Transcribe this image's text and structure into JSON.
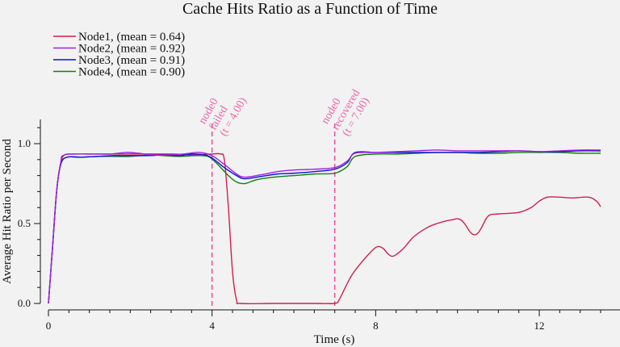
{
  "chart_data": {
    "type": "line",
    "title": "Cache Hits Ratio as a Function of Time",
    "xlabel": "Time (s)",
    "ylabel": "Average Hit Ratio per Second",
    "xlim": [
      0,
      13.5
    ],
    "ylim": [
      -0.02,
      1.15
    ],
    "x_ticks": [
      0,
      4,
      8,
      12
    ],
    "x_tick_labels": [
      "0",
      "4",
      "8",
      "12"
    ],
    "x_minor_ticks": [
      0.5,
      1,
      1.5,
      2,
      2.5,
      3,
      3.5,
      4.5,
      5,
      5.5,
      6,
      6.5,
      7,
      7.5,
      8.5,
      9,
      9.5,
      10,
      10.5,
      11,
      11.5,
      12.5,
      13,
      13.5
    ],
    "y_ticks": [
      0,
      0.5,
      1.0
    ],
    "y_tick_labels": [
      "0.0",
      "0.5",
      "1.0"
    ],
    "legend_position": "top-left",
    "series": [
      {
        "name": "Node1, (mean = 0.64)",
        "color": "#d0204e",
        "points": [
          [
            0,
            0
          ],
          [
            0.1,
            0.35
          ],
          [
            0.2,
            0.7
          ],
          [
            0.3,
            0.88
          ],
          [
            0.4,
            0.93
          ],
          [
            0.6,
            0.935
          ],
          [
            1,
            0.935
          ],
          [
            1.5,
            0.935
          ],
          [
            2,
            0.935
          ],
          [
            2.5,
            0.935
          ],
          [
            3,
            0.935
          ],
          [
            3.5,
            0.93
          ],
          [
            4,
            0.935
          ],
          [
            4.2,
            0.935
          ],
          [
            4.3,
            0.9
          ],
          [
            4.4,
            0.6
          ],
          [
            4.5,
            0.2
          ],
          [
            4.6,
            0.02
          ],
          [
            4.7,
            0
          ],
          [
            5.5,
            0
          ],
          [
            6.5,
            0
          ],
          [
            7,
            0
          ],
          [
            7.1,
            0.02
          ],
          [
            7.2,
            0.07
          ],
          [
            7.4,
            0.17
          ],
          [
            7.6,
            0.24
          ],
          [
            7.8,
            0.3
          ],
          [
            8,
            0.35
          ],
          [
            8.1,
            0.355
          ],
          [
            8.2,
            0.34
          ],
          [
            8.3,
            0.31
          ],
          [
            8.4,
            0.295
          ],
          [
            8.5,
            0.305
          ],
          [
            8.7,
            0.35
          ],
          [
            8.9,
            0.41
          ],
          [
            9.1,
            0.45
          ],
          [
            9.3,
            0.48
          ],
          [
            9.5,
            0.5
          ],
          [
            9.7,
            0.515
          ],
          [
            9.9,
            0.525
          ],
          [
            10,
            0.53
          ],
          [
            10.1,
            0.52
          ],
          [
            10.2,
            0.49
          ],
          [
            10.3,
            0.45
          ],
          [
            10.4,
            0.43
          ],
          [
            10.5,
            0.44
          ],
          [
            10.6,
            0.48
          ],
          [
            10.7,
            0.53
          ],
          [
            10.8,
            0.555
          ],
          [
            11,
            0.56
          ],
          [
            11.5,
            0.57
          ],
          [
            11.8,
            0.6
          ],
          [
            12,
            0.64
          ],
          [
            12.2,
            0.665
          ],
          [
            12.5,
            0.665
          ],
          [
            12.8,
            0.66
          ],
          [
            13.2,
            0.665
          ],
          [
            13.4,
            0.64
          ],
          [
            13.5,
            0.605
          ]
        ]
      },
      {
        "name": "Node2, (mean = 0.92)",
        "color": "#a020e0",
        "points": [
          [
            0,
            0
          ],
          [
            0.1,
            0.35
          ],
          [
            0.2,
            0.7
          ],
          [
            0.3,
            0.88
          ],
          [
            0.4,
            0.93
          ],
          [
            1,
            0.935
          ],
          [
            1.5,
            0.935
          ],
          [
            1.9,
            0.945
          ],
          [
            2.2,
            0.94
          ],
          [
            2.5,
            0.93
          ],
          [
            3,
            0.93
          ],
          [
            3.3,
            0.935
          ],
          [
            3.7,
            0.945
          ],
          [
            4,
            0.925
          ],
          [
            4.3,
            0.87
          ],
          [
            4.6,
            0.81
          ],
          [
            4.8,
            0.79
          ],
          [
            5.2,
            0.805
          ],
          [
            5.6,
            0.825
          ],
          [
            6,
            0.835
          ],
          [
            6.5,
            0.84
          ],
          [
            7,
            0.85
          ],
          [
            7.3,
            0.89
          ],
          [
            7.5,
            0.94
          ],
          [
            8,
            0.945
          ],
          [
            8.5,
            0.95
          ],
          [
            9,
            0.955
          ],
          [
            9.5,
            0.96
          ],
          [
            10,
            0.955
          ],
          [
            10.5,
            0.955
          ],
          [
            11,
            0.955
          ],
          [
            11.5,
            0.955
          ],
          [
            12,
            0.95
          ],
          [
            12.5,
            0.955
          ],
          [
            13,
            0.96
          ],
          [
            13.5,
            0.96
          ]
        ]
      },
      {
        "name": "Node3, (mean = 0.91)",
        "color": "#1010d8",
        "points": [
          [
            0,
            0
          ],
          [
            0.1,
            0.35
          ],
          [
            0.2,
            0.7
          ],
          [
            0.3,
            0.87
          ],
          [
            0.45,
            0.915
          ],
          [
            0.8,
            0.915
          ],
          [
            1.2,
            0.92
          ],
          [
            1.6,
            0.925
          ],
          [
            2,
            0.925
          ],
          [
            2.5,
            0.925
          ],
          [
            2.8,
            0.93
          ],
          [
            3.2,
            0.925
          ],
          [
            3.5,
            0.935
          ],
          [
            3.8,
            0.93
          ],
          [
            4,
            0.91
          ],
          [
            4.3,
            0.85
          ],
          [
            4.6,
            0.8
          ],
          [
            4.8,
            0.78
          ],
          [
            5.2,
            0.795
          ],
          [
            5.6,
            0.81
          ],
          [
            6,
            0.815
          ],
          [
            6.5,
            0.825
          ],
          [
            7,
            0.84
          ],
          [
            7.3,
            0.88
          ],
          [
            7.5,
            0.945
          ],
          [
            8,
            0.945
          ],
          [
            8.5,
            0.945
          ],
          [
            9,
            0.945
          ],
          [
            9.5,
            0.945
          ],
          [
            10,
            0.945
          ],
          [
            10.5,
            0.945
          ],
          [
            11,
            0.95
          ],
          [
            11.5,
            0.955
          ],
          [
            12,
            0.95
          ],
          [
            12.5,
            0.95
          ],
          [
            13,
            0.955
          ],
          [
            13.5,
            0.955
          ]
        ]
      },
      {
        "name": "Node4, (mean = 0.90)",
        "color": "#108010",
        "points": [
          [
            0,
            0
          ],
          [
            0.1,
            0.35
          ],
          [
            0.2,
            0.7
          ],
          [
            0.3,
            0.87
          ],
          [
            0.45,
            0.915
          ],
          [
            0.8,
            0.915
          ],
          [
            1.2,
            0.92
          ],
          [
            1.6,
            0.92
          ],
          [
            2,
            0.92
          ],
          [
            2.5,
            0.93
          ],
          [
            2.8,
            0.925
          ],
          [
            3.2,
            0.92
          ],
          [
            3.6,
            0.925
          ],
          [
            3.9,
            0.92
          ],
          [
            4.1,
            0.88
          ],
          [
            4.4,
            0.8
          ],
          [
            4.6,
            0.76
          ],
          [
            4.8,
            0.75
          ],
          [
            5.1,
            0.775
          ],
          [
            5.5,
            0.79
          ],
          [
            6,
            0.8
          ],
          [
            6.5,
            0.81
          ],
          [
            7,
            0.815
          ],
          [
            7.3,
            0.855
          ],
          [
            7.5,
            0.92
          ],
          [
            8,
            0.935
          ],
          [
            8.5,
            0.935
          ],
          [
            9,
            0.94
          ],
          [
            9.5,
            0.945
          ],
          [
            10,
            0.945
          ],
          [
            10.5,
            0.94
          ],
          [
            11,
            0.94
          ],
          [
            11.5,
            0.945
          ],
          [
            12,
            0.945
          ],
          [
            12.5,
            0.945
          ],
          [
            13,
            0.94
          ],
          [
            13.5,
            0.94
          ]
        ]
      }
    ],
    "events": [
      {
        "x": 4.0,
        "lines": [
          "node0",
          "failed",
          "(t = 4.00)"
        ]
      },
      {
        "x": 7.0,
        "lines": [
          "node0",
          "recovered",
          "(t = 7.00)"
        ]
      }
    ]
  }
}
